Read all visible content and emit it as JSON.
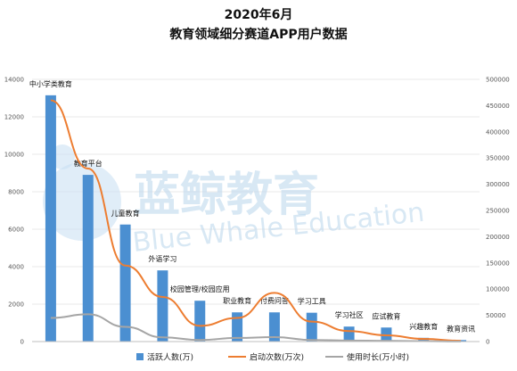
{
  "chart_data": {
    "type": "bar",
    "title": "2020年6月",
    "subtitle": "教育领域细分赛道APP用户数据",
    "categories": [
      "中小学类教育",
      "教育平台",
      "儿童教育",
      "外语学习",
      "校园管理/校园应用",
      "职业教育",
      "付费问答",
      "学习工具",
      "学习社区",
      "应试教育",
      "兴趣教育",
      "教育资讯"
    ],
    "left_axis": {
      "ticks": [
        "0",
        "2000",
        "4000",
        "6000",
        "8000",
        "10000",
        "12000",
        "14000"
      ],
      "range": [
        0,
        14000
      ]
    },
    "right_axis": {
      "ticks": [
        "0",
        "50000",
        "100000",
        "150000",
        "200000",
        "250000",
        "300000",
        "350000",
        "400000",
        "450000",
        "500000"
      ],
      "range": [
        0,
        500000
      ]
    },
    "series": [
      {
        "name": "活跃人数(万)",
        "kind": "bar",
        "axis": "left",
        "color": "#4b8fd1",
        "values": [
          13150,
          8900,
          6250,
          3800,
          2180,
          1560,
          1560,
          1540,
          800,
          750,
          200,
          80
        ]
      },
      {
        "name": "启动次数(万次)",
        "kind": "line",
        "axis": "right",
        "color": "#ed7d31",
        "values": [
          460000,
          330000,
          145000,
          85000,
          30000,
          45000,
          93000,
          38000,
          20000,
          12000,
          5000,
          1500
        ]
      },
      {
        "name": "使用时长(万小时)",
        "kind": "line",
        "axis": "right",
        "color": "#a5a5a5",
        "values": [
          45000,
          52000,
          28000,
          8000,
          3000,
          7000,
          8500,
          3000,
          2000,
          1500,
          800,
          200
        ]
      }
    ],
    "grid": true,
    "legend_position": "bottom"
  },
  "watermark": {
    "logo_text": "蓝鲸教育",
    "caption": "Blue Whale Education"
  }
}
